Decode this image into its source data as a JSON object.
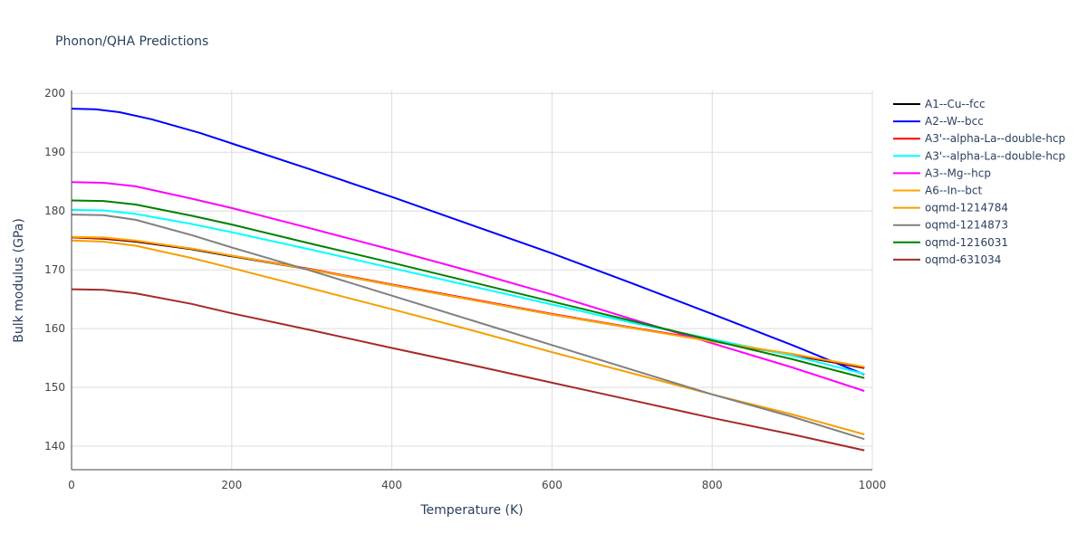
{
  "chart_data": {
    "type": "line",
    "title": "Phonon/QHA Predictions",
    "xlabel": "Temperature (K)",
    "ylabel": "Bulk modulus (GPa)",
    "xlim": [
      0,
      1000
    ],
    "ylim": [
      136,
      200.5
    ],
    "xticks": [
      0,
      200,
      400,
      600,
      800,
      1000
    ],
    "yticks": [
      140,
      150,
      160,
      170,
      180,
      190,
      200
    ],
    "grid": true,
    "legend_position": "top-right",
    "series": [
      {
        "name": "A1--Cu--fcc",
        "color": "#000000",
        "points": [
          [
            0,
            175.5
          ],
          [
            40,
            175.3
          ],
          [
            80,
            174.8
          ],
          [
            150,
            173.5
          ],
          [
            200,
            172.3
          ],
          [
            300,
            170.0
          ],
          [
            400,
            167.4
          ],
          [
            500,
            164.9
          ],
          [
            600,
            162.4
          ],
          [
            700,
            160.1
          ],
          [
            800,
            157.9
          ],
          [
            900,
            155.5
          ],
          [
            990,
            153.3
          ]
        ]
      },
      {
        "name": "A2--W--bcc",
        "color": "#0000ff",
        "points": [
          [
            0,
            197.4
          ],
          [
            30,
            197.3
          ],
          [
            60,
            196.8
          ],
          [
            100,
            195.6
          ],
          [
            160,
            193.3
          ],
          [
            200,
            191.5
          ],
          [
            300,
            187.0
          ],
          [
            400,
            182.4
          ],
          [
            500,
            177.6
          ],
          [
            600,
            172.8
          ],
          [
            700,
            167.7
          ],
          [
            800,
            162.5
          ],
          [
            900,
            157.2
          ],
          [
            990,
            152.2
          ]
        ]
      },
      {
        "name": "A3'--alpha-La--double-hcp",
        "color": "#ff0000",
        "points": [
          [
            0,
            175.5
          ],
          [
            40,
            175.4
          ],
          [
            80,
            174.9
          ],
          [
            150,
            173.6
          ],
          [
            200,
            172.4
          ],
          [
            300,
            170.1
          ],
          [
            400,
            167.5
          ],
          [
            500,
            165.0
          ],
          [
            600,
            162.5
          ],
          [
            700,
            160.2
          ],
          [
            800,
            157.9
          ],
          [
            900,
            155.6
          ],
          [
            990,
            153.4
          ]
        ]
      },
      {
        "name": "A3'--alpha-La--double-hcp",
        "color": "#00ffff",
        "points": [
          [
            0,
            180.2
          ],
          [
            40,
            180.1
          ],
          [
            80,
            179.5
          ],
          [
            150,
            177.8
          ],
          [
            200,
            176.4
          ],
          [
            300,
            173.4
          ],
          [
            400,
            170.3
          ],
          [
            500,
            167.2
          ],
          [
            600,
            164.1
          ],
          [
            700,
            161.0
          ],
          [
            800,
            158.2
          ],
          [
            900,
            155.4
          ],
          [
            990,
            152.3
          ]
        ]
      },
      {
        "name": "A3--Mg--hcp",
        "color": "#ff00ff",
        "points": [
          [
            0,
            184.9
          ],
          [
            40,
            184.8
          ],
          [
            80,
            184.2
          ],
          [
            150,
            182.1
          ],
          [
            200,
            180.5
          ],
          [
            300,
            177.0
          ],
          [
            400,
            173.4
          ],
          [
            500,
            169.7
          ],
          [
            600,
            165.8
          ],
          [
            700,
            161.6
          ],
          [
            800,
            157.5
          ],
          [
            900,
            153.4
          ],
          [
            990,
            149.4
          ]
        ]
      },
      {
        "name": "A6--In--bct",
        "color": "#ffa500",
        "points": [
          [
            0,
            175.6
          ],
          [
            40,
            175.5
          ],
          [
            80,
            175.0
          ],
          [
            150,
            173.6
          ],
          [
            200,
            172.4
          ],
          [
            300,
            170.0
          ],
          [
            400,
            167.4
          ],
          [
            500,
            164.9
          ],
          [
            600,
            162.4
          ],
          [
            700,
            160.1
          ],
          [
            800,
            157.8
          ],
          [
            900,
            155.7
          ],
          [
            990,
            153.5
          ]
        ]
      },
      {
        "name": "oqmd-1214784",
        "color": "#f59f00",
        "points": [
          [
            0,
            175.0
          ],
          [
            40,
            174.8
          ],
          [
            80,
            174.1
          ],
          [
            150,
            172.0
          ],
          [
            200,
            170.3
          ],
          [
            300,
            166.8
          ],
          [
            400,
            163.3
          ],
          [
            500,
            159.7
          ],
          [
            600,
            156.0
          ],
          [
            700,
            152.4
          ],
          [
            800,
            148.8
          ],
          [
            900,
            145.4
          ],
          [
            990,
            142.0
          ]
        ]
      },
      {
        "name": "oqmd-1214873",
        "color": "#808080",
        "points": [
          [
            0,
            179.4
          ],
          [
            40,
            179.3
          ],
          [
            80,
            178.5
          ],
          [
            150,
            175.9
          ],
          [
            200,
            173.8
          ],
          [
            300,
            169.8
          ],
          [
            400,
            165.6
          ],
          [
            500,
            161.4
          ],
          [
            600,
            157.2
          ],
          [
            700,
            153.0
          ],
          [
            800,
            148.8
          ],
          [
            900,
            145.0
          ],
          [
            990,
            141.2
          ]
        ]
      },
      {
        "name": "oqmd-1216031",
        "color": "#008000",
        "points": [
          [
            0,
            181.8
          ],
          [
            40,
            181.7
          ],
          [
            80,
            181.1
          ],
          [
            150,
            179.2
          ],
          [
            200,
            177.7
          ],
          [
            300,
            174.4
          ],
          [
            400,
            171.2
          ],
          [
            500,
            167.9
          ],
          [
            600,
            164.6
          ],
          [
            700,
            161.3
          ],
          [
            800,
            158.0
          ],
          [
            900,
            154.8
          ],
          [
            990,
            151.6
          ]
        ]
      },
      {
        "name": "oqmd-631034",
        "color": "#a52a2a",
        "points": [
          [
            0,
            166.7
          ],
          [
            40,
            166.6
          ],
          [
            80,
            166.0
          ],
          [
            150,
            164.2
          ],
          [
            200,
            162.6
          ],
          [
            300,
            159.7
          ],
          [
            400,
            156.7
          ],
          [
            500,
            153.8
          ],
          [
            600,
            150.8
          ],
          [
            700,
            147.8
          ],
          [
            800,
            144.8
          ],
          [
            900,
            142.0
          ],
          [
            990,
            139.3
          ]
        ]
      }
    ]
  }
}
